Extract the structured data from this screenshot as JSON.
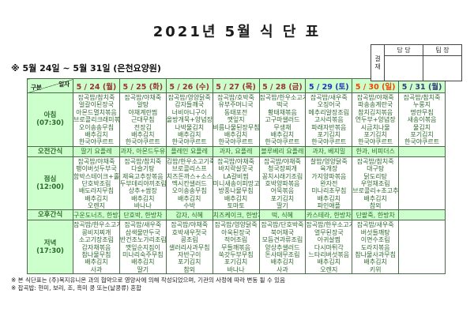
{
  "title": "2021년 5월 식 단 표",
  "subtitle": "※  5월 24일  ~  5월 31일  (은천요양원)",
  "approval": {
    "stamp_label": "결재",
    "columns": [
      "담 당",
      "팀 장"
    ]
  },
  "table": {
    "corner": {
      "top": "일자",
      "bottom": "구분"
    },
    "days": [
      {
        "label": "5 / 24 (월)",
        "color": "#993333"
      },
      {
        "label": "5 / 25 (화)",
        "color": "#993333"
      },
      {
        "label": "5 / 26 (수)",
        "color": "#993333"
      },
      {
        "label": "5 / 27 (목)",
        "color": "#993333"
      },
      {
        "label": "5 / 28 (금)",
        "color": "#993333"
      },
      {
        "label": "5 / 29 (토)",
        "color": "#2233bb"
      },
      {
        "label": "5 / 30 (일)",
        "color": "#ee4400"
      },
      {
        "label": "5 / 31 (월)",
        "color": "#333a7a"
      }
    ],
    "rows": [
      {
        "label": "아침",
        "time": "(07:30)",
        "type": "meal",
        "cells": [
          [
            "잡곡밥/참치죽",
            "얼갈이된장국",
            "아몬드멸치볶음",
            "브로콜리크래미볶음",
            "오이송송무침",
            "배추김치",
            "한국야쿠르트"
          ],
          [
            "잡곡밥/야채죽",
            "알탕",
            "야채계란찜",
            "근대무침",
            "전장김",
            "배추김치",
            "한국야쿠르트"
          ],
          [
            "잡곡밥/영양닭죽",
            "감자들깨국",
            "너비아니구이",
            "올방개묵+양념장",
            "나박물김치",
            "배추김치",
            "한국야쿠르트"
          ],
          [
            "잡곡밥/호박죽",
            "유부주머니국",
            "동태포전",
            "깻잎지",
            "비름나물된장무침",
            "배추김치",
            "한국야쿠르트"
          ],
          [
            "잡곡밥/한우소고기죽",
            "떡국",
            "황태채볶음",
            "고구마샐러드",
            "무생채",
            "배추김치",
            "한국야쿠르트"
          ],
          [
            "잡곡밥/새우죽",
            "오징어국",
            "메추리알장조림",
            "고사리볶음",
            "파래자반볶음",
            "포기김치",
            "한국야쿠르트"
          ],
          [
            "잡곡밥/야채죽",
            "파송송계란국",
            "참치김치볶음",
            "연두부+양념장",
            "시금치나물",
            "포기김치",
            "한국야쿠르트"
          ],
          [
            "잡곡밥/참치죽",
            "누룽지",
            "명란무침",
            "새송이볶음",
            "물김치",
            "포기김치",
            "한국야쿠르트"
          ]
        ]
      },
      {
        "label": "오전간식",
        "time": "",
        "type": "snack",
        "cells": [
          "딸기 요플레",
          "과자, 아몬드두유",
          "플레인 요플레",
          "과자, 요플레",
          "블루베리 요플레",
          "과자, 베지밀",
          "한과, 비피더스",
          ""
        ]
      },
      {
        "label": "점심",
        "time": "(12:00)",
        "type": "meal",
        "cells": [
          [
            "잡곡밥/야채죽",
            "팽이버섯두부국",
            "함박스테이크+홀스레디쉬",
            "단호박조림",
            "배도라지무침",
            "배추김치",
            "오렌지"
          ],
          [
            "잡곡밥/참치죽",
            "다슬기탕",
            "제육고추장볶음",
            "두부데리야끼조림",
            "상추+쌈장",
            "배추김치",
            "바나나"
          ],
          [
            "김밥/한우소고기죽",
            "브로콜리스프",
            "치즈돈까스+소스",
            "멕시칸샐러드",
            "오이송송무침",
            "배추김치",
            "수박"
          ],
          [
            "잡곡밥/야채죽",
            "바지락살뭇국",
            "LA갈비찜",
            "미니새송이피망고추조림",
            "방풍나물무침",
            "배추김치",
            "토마토"
          ],
          [
            "잡곡밥/야채죽",
            "청국장찌개",
            "꽁치시래기조림",
            "호박양파볶음",
            "어묵볶음",
            "포기김치",
            "딸기"
          ],
          [
            "찰밥/영양닭죽",
            "육개장",
            "가지양파볶음",
            "완자전",
            "미나리초무침",
            "배추김치",
            "파인애플"
          ],
          [
            "잡곡밥/참치죽",
            "대구탕",
            "닭도리탕",
            "우엉채조림",
            "브로콜리+초고추장",
            "배추김치",
            "참외"
          ],
          [
            "",
            "",
            "",
            "",
            "",
            "",
            ""
          ]
        ]
      },
      {
        "label": "오후간식",
        "time": "",
        "type": "snack",
        "cells": [
          "구운도너츠, 한방차",
          "단호박, 한방차",
          "감자, 식혜",
          "치즈케이크, 한방차",
          "떡, 식혜",
          "카스테라, 한방차",
          "단팥죽, 한방차",
          ""
        ]
      },
      {
        "label": "저녁",
        "time": "(17:30)",
        "type": "meal",
        "cells": [
          [
            "잡곡밥/한우소고기죽",
            "콩비지찌개",
            "소고기장조림",
            "감자채볶음",
            "참나물무침",
            "배추김치",
            "사과"
          ],
          [
            "잡곡밥/새우죽",
            "삼색물만두국",
            "반건조노가리조림",
            "깻잎순지짐이",
            "미나리숙주무침",
            "배추김치",
            "딸기"
          ],
          [
            "잡곡밥/야채죽",
            "호박새우젓국",
            "콩조림",
            "샐러리사과무침",
            "자반구이",
            "포기김치",
            "참외"
          ],
          [
            "잡곡밥/영양닭죽",
            "아욱된장국",
            "적어조림",
            "무들깨볶음",
            "쑥갓두부무침",
            "포기김치",
            "바나나"
          ],
          [
            "잡곡밥/단호박죽",
            "북어채국",
            "모듬견과류조림",
            "양상추샐러드",
            "돈사태무조림",
            "배추김치",
            "사과"
          ],
          [
            "잡곡밥/한우소고기죽",
            "열무된장국",
            "아귀살찜",
            "다시마튀각",
            "느타리버섯볶음",
            "배추김치",
            "오렌지"
          ],
          [
            "잡곡밥/새우죽",
            "버섯들깨탕",
            "이면수조림",
            "도라지볶음",
            "참나물사과무침",
            "배추김치",
            "키위"
          ],
          [
            "",
            "",
            "",
            "",
            "",
            "",
            ""
          ]
        ]
      }
    ]
  },
  "footnotes": [
    "※ 본 식단표는 (주)복지유니온 과의 협약으로 영양사에 의해 작성되었으며, 기관의 사정에 따라 변동 될 수 있음",
    "※ 잡곡밥: 현미, 보리, 조, 흑미 콩 또는(낱콩류) 혼합"
  ]
}
